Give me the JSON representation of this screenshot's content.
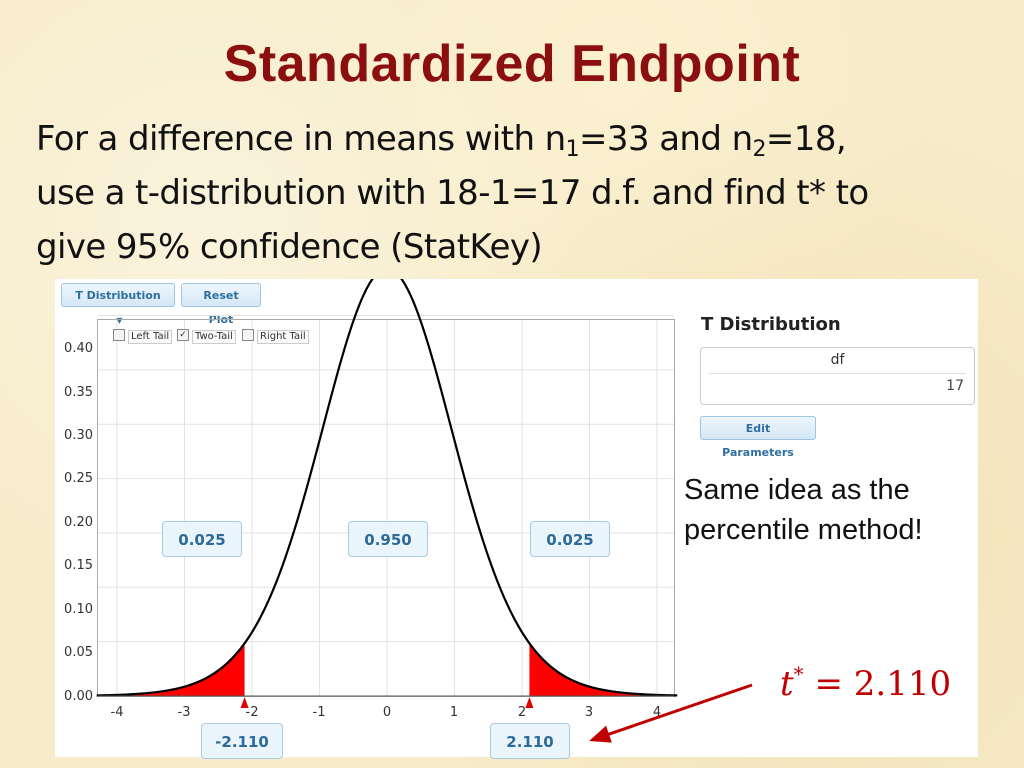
{
  "slide": {
    "title": "Standardized Endpoint",
    "line1_pre": "For a difference in means with n",
    "n1_sub": "1",
    "line1_mid": "=33 and n",
    "n2_sub": "2",
    "line1_post": "=18,",
    "line2": "use a t-distribution with 18-1=17 d.f. and find t* to",
    "line3": "give 95% confidence  (StatKey)",
    "side_note_line1": "Same idea as the",
    "side_note_line2": "percentile method!",
    "tstar_symbol": "t",
    "tstar_sup": "*",
    "tstar_value": " = 2.110"
  },
  "statkey": {
    "dist_button": "T Distribution",
    "reset_button": "Reset Plot",
    "options": {
      "left_tail": "Left Tail",
      "two_tail": "Two-Tail",
      "right_tail": "Right Tail",
      "left_checked": false,
      "two_checked": true,
      "right_checked": false
    },
    "panel_title": "T Distribution",
    "param_label": "df",
    "param_value": "17",
    "edit_button": "Edit Parameters",
    "left_tail_prob": "0.025",
    "middle_prob": "0.950",
    "right_tail_prob": "0.025",
    "left_cutoff": "-2.110",
    "right_cutoff": "2.110"
  },
  "chart_data": {
    "type": "area",
    "title": "",
    "xlabel": "",
    "ylabel": "",
    "distribution": "t",
    "df": 17,
    "xlim": [
      -4.3,
      4.3
    ],
    "ylim": [
      0,
      0.4
    ],
    "x_ticks": [
      "-4",
      "-3",
      "-2",
      "-1",
      "0",
      "1",
      "2",
      "3",
      "4"
    ],
    "y_ticks": [
      "0.00",
      "0.05",
      "0.10",
      "0.15",
      "0.20",
      "0.25",
      "0.30",
      "0.35",
      "0.40"
    ],
    "shaded_regions": [
      {
        "from": -4.3,
        "to": -2.11,
        "color": "#ff0000"
      },
      {
        "from": 2.11,
        "to": 4.3,
        "color": "#ff0000"
      }
    ],
    "grid": true,
    "curve_color": "#000000"
  }
}
